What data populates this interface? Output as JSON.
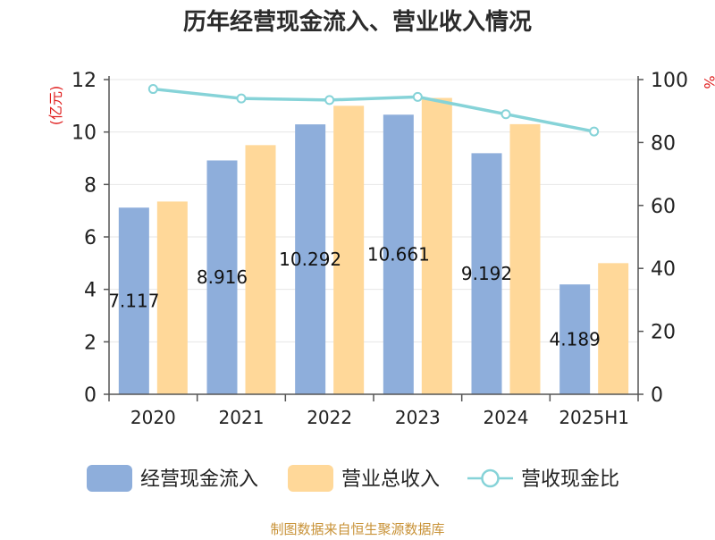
{
  "chart_data": {
    "type": "bar",
    "title": "历年经营现金流入、营业收入情况",
    "categories": [
      "2020",
      "2021",
      "2022",
      "2023",
      "2024",
      "2025H1"
    ],
    "series": [
      {
        "name": "经营现金流入",
        "type": "bar",
        "axis": "left",
        "color": "#8eaedb",
        "values": [
          7.117,
          8.916,
          10.292,
          10.661,
          9.192,
          4.189
        ]
      },
      {
        "name": "营业总收入",
        "type": "bar",
        "axis": "left",
        "color": "#ffd899",
        "values": [
          7.35,
          9.5,
          11.0,
          11.3,
          10.3,
          5.0
        ]
      },
      {
        "name": "营收现金比",
        "type": "line",
        "axis": "right",
        "color": "#86d3d8",
        "values": [
          97,
          94,
          93.5,
          94.5,
          89,
          83.5
        ]
      }
    ],
    "data_labels": [
      "7.117",
      "8.916",
      "10.292",
      "10.661",
      "9.192",
      "4.189"
    ],
    "y_left": {
      "unit": "(亿元)",
      "min": 0,
      "max": 12,
      "ticks": [
        "0",
        "2",
        "4",
        "6",
        "8",
        "10",
        "12"
      ]
    },
    "y_right": {
      "unit": "%",
      "min": 0,
      "max": 100,
      "ticks": [
        "0",
        "20",
        "40",
        "60",
        "80",
        "100"
      ]
    },
    "grid": true,
    "legend_position": "bottom",
    "source": "制图数据来自恒生聚源数据库"
  }
}
